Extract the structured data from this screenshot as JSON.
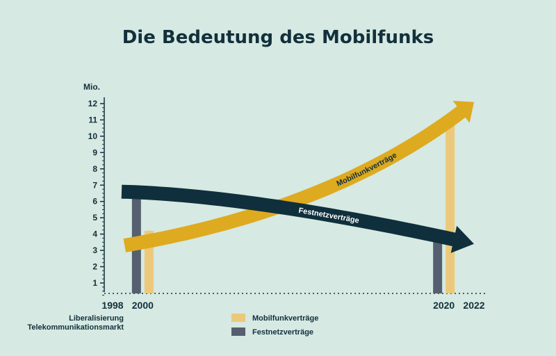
{
  "chart_data": {
    "type": "bar",
    "title": "Die Bedeutung des Mobilfunks",
    "ylabel": "Mio.",
    "ylim": [
      0,
      12
    ],
    "yticks": [
      "1",
      "2",
      "3",
      "4",
      "5",
      "6",
      "7",
      "8",
      "9",
      "10",
      "11",
      "12"
    ],
    "xticks": [
      "1998",
      "2000",
      "2020",
      "2022"
    ],
    "x_annotation": [
      "Liberalisierung",
      "Telekommunikationsmarkt"
    ],
    "grid": false,
    "legend": {
      "placement": "bottom-center"
    },
    "series": [
      {
        "name": "Mobilfunkverträge",
        "color": "#ecc97a",
        "points": [
          {
            "x": 2000,
            "y": 4.2
          },
          {
            "x": 2020,
            "y": 10.8
          }
        ],
        "trend_arrow": {
          "label": "Mobilfunkverträge",
          "color": "#deaa1f",
          "from": {
            "x": 1998.8,
            "y": 3.3
          },
          "to": {
            "x": 2022,
            "y": 12.1
          }
        }
      },
      {
        "name": "Festnetzverträge",
        "color": "#555f70",
        "points": [
          {
            "x": 2000,
            "y": 6.2
          },
          {
            "x": 2020,
            "y": 3.6
          }
        ],
        "trend_arrow": {
          "label": "Festnetzverträge",
          "color": "#0f2f3c",
          "from": {
            "x": 1998.6,
            "y": 6.6
          },
          "to": {
            "x": 2022,
            "y": 3.4
          }
        }
      }
    ]
  }
}
